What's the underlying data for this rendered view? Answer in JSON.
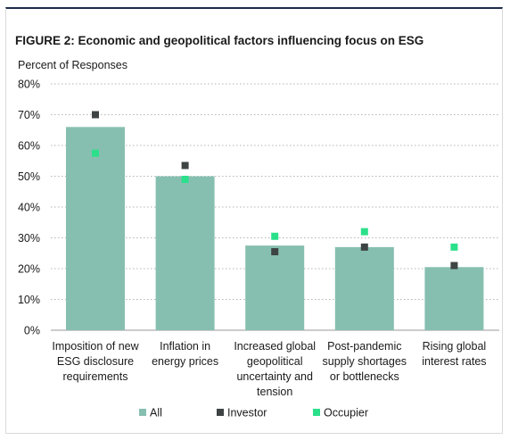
{
  "chart_data": {
    "type": "bar",
    "title": "FIGURE 2: Economic and geopolitical factors influencing focus on ESG",
    "ylabel": "Percent of Responses",
    "xlabel": "",
    "ylim": [
      0,
      80
    ],
    "yticks": [
      0,
      10,
      20,
      30,
      40,
      50,
      60,
      70,
      80
    ],
    "ytick_labels": [
      "0%",
      "10%",
      "20%",
      "30%",
      "40%",
      "50%",
      "60%",
      "70%",
      "80%"
    ],
    "categories": [
      [
        "Imposition of new",
        "ESG disclosure",
        "requirements"
      ],
      [
        "Inflation in",
        "energy prices"
      ],
      [
        "Increased global",
        "geopolitical",
        "uncertainty and",
        "tension"
      ],
      [
        "Post-pandemic",
        "supply shortages",
        "or bottlenecks"
      ],
      [
        "Rising global",
        "interest rates"
      ]
    ],
    "series": [
      {
        "name": "All",
        "kind": "bar",
        "color": "#86bfb0",
        "values": [
          66,
          50,
          27.5,
          27,
          20.5
        ]
      },
      {
        "name": "Investor",
        "kind": "marker",
        "color": "#3d4443",
        "values": [
          70,
          53.5,
          25.5,
          27,
          21
        ]
      },
      {
        "name": "Occupier",
        "kind": "marker",
        "color": "#2be08a",
        "values": [
          57.5,
          49,
          30.5,
          32,
          27
        ]
      }
    ],
    "grid": "horizontal-dotted",
    "legend": "bottom"
  }
}
